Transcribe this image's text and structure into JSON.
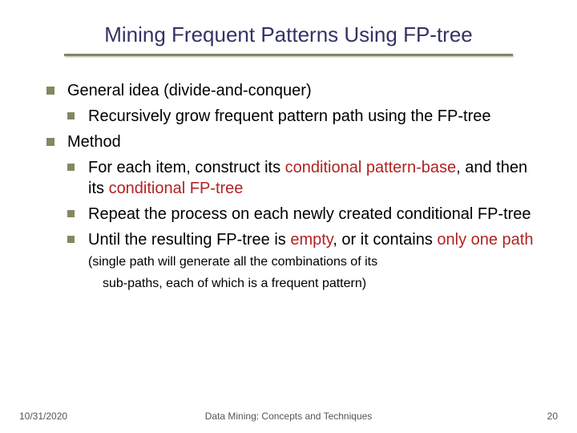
{
  "title": "Mining Frequent Patterns Using FP-tree",
  "colors": {
    "title_color": "#333366",
    "bullet_color": "#868660",
    "highlight_color": "#b22222",
    "text_color": "#000000",
    "background": "#ffffff"
  },
  "typography": {
    "title_fontsize": 26,
    "body_fontsize": 20,
    "trailing_fontsize": 16,
    "footer_fontsize": 12,
    "font_family": "Verdana"
  },
  "bullets": {
    "item1": "General idea (divide-and-conquer)",
    "item1_sub1": "Recursively grow frequent pattern path using the FP-tree",
    "item2": "Method",
    "item2_sub1_a": "For each item, construct its ",
    "item2_sub1_hl1": "conditional pattern-base",
    "item2_sub1_b": ", and then its ",
    "item2_sub1_hl2": "conditional FP-tree",
    "item2_sub2": "Repeat the process on each newly created conditional FP-tree",
    "item2_sub3_a": "Until the resulting FP-tree is ",
    "item2_sub3_hl1": "empty",
    "item2_sub3_b": ", or it contains ",
    "item2_sub3_hl2": "only one path",
    "item2_sub3_trail": " (single path will generate all the combinations of its",
    "trailing_line": "sub-paths, each of which is a frequent pattern)"
  },
  "footer": {
    "date": "10/31/2020",
    "center": "Data Mining: Concepts and Techniques",
    "page": "20"
  }
}
